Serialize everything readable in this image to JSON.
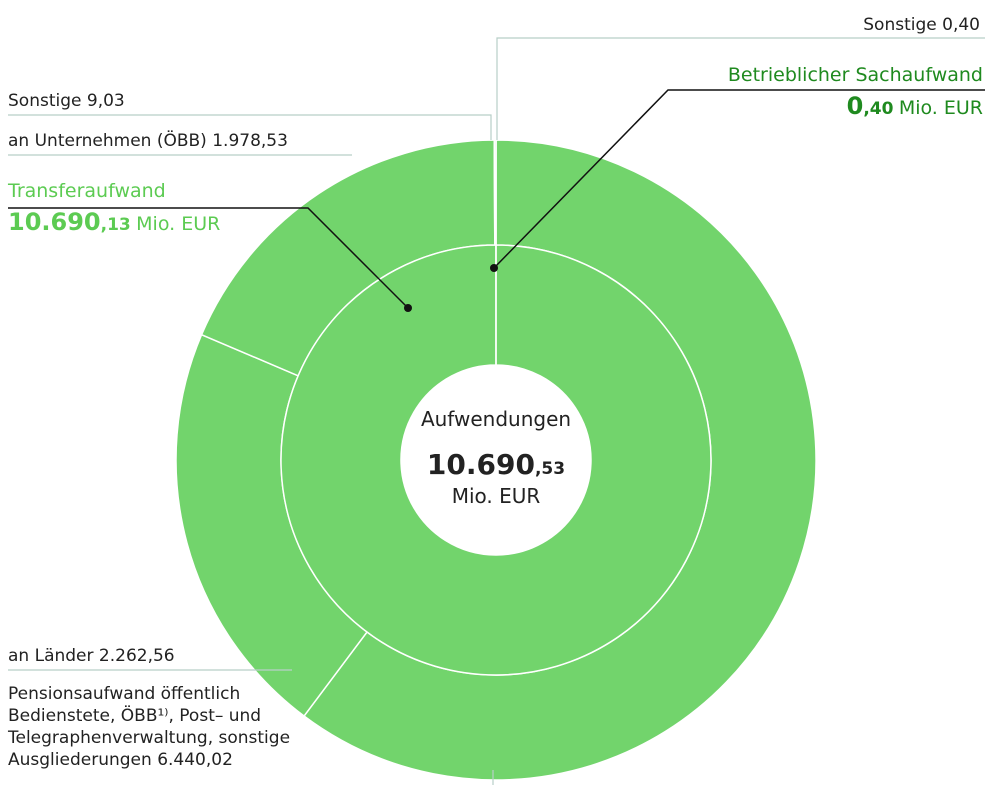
{
  "chart_data": {
    "type": "sunburst",
    "center_label": "Aufwendungen",
    "total": 10690.53,
    "total_label": "10.690,53",
    "unit": "Mio. EUR",
    "color": "#72d46c",
    "inner": [
      {
        "name": "Transferaufwand",
        "value": 10690.13,
        "value_label": "10.690,13",
        "label_color": "#5ccb52"
      },
      {
        "name": "Betrieblicher Sachaufwand",
        "value": 0.4,
        "value_label": "0,40",
        "label_color": "#1f8a1f"
      }
    ],
    "outer": [
      {
        "name": "Pensionsaufwand öffentlich Bedienstete, ÖBB¹⁾, Post– und Telegraphenverwaltung, sonstige Ausgliederungen",
        "value": 6440.02,
        "value_label": "6.440,02"
      },
      {
        "name": "an Länder",
        "value": 2262.56,
        "value_label": "2.262,56"
      },
      {
        "name": "an Unternehmen (ÖBB)",
        "value": 1978.53,
        "value_label": "1.978,53"
      },
      {
        "name": "Sonstige",
        "value": 9.03,
        "value_label": "9,03"
      },
      {
        "name": "Sonstige",
        "value": 0.4,
        "value_label": "0,40"
      }
    ]
  }
}
